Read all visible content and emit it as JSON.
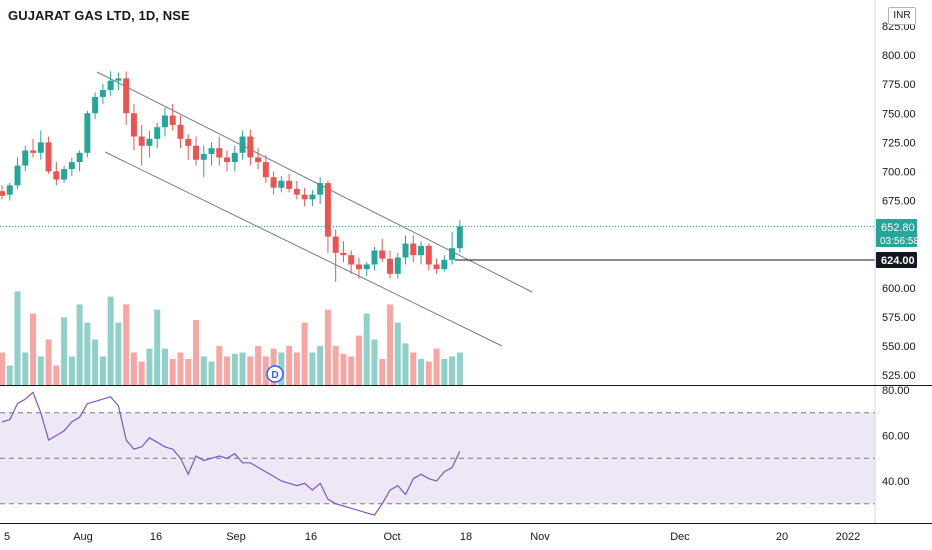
{
  "header": {
    "title": "GUJARAT GAS LTD, 1D, NSE",
    "currency_label": "INR"
  },
  "price_axis": {
    "ticks": [
      "825.00",
      "800.00",
      "775.00",
      "750.00",
      "725.00",
      "700.00",
      "675.00",
      "600.00",
      "575.00",
      "550.00",
      "525.00"
    ],
    "last_price": "652.80",
    "countdown": "03:56:58",
    "level_label": "624.00"
  },
  "rsi_axis": {
    "ticks": [
      "80.00",
      "60.00",
      "40.00"
    ]
  },
  "time_axis": {
    "labels": [
      "5",
      "Aug",
      "16",
      "Sep",
      "16",
      "Oct",
      "18",
      "Nov",
      "Dec",
      "20",
      "2022"
    ]
  },
  "dividend_marker": "D",
  "colors": {
    "up": "#26a69a",
    "down": "#ef5350",
    "up_volume": "#8fd1c8",
    "down_volume": "#f7a6a4",
    "rsi_line": "#7e57c2",
    "rsi_band": "#ede7f6",
    "trendline": "#787b86"
  },
  "chart_data": {
    "type": "candlestick",
    "title": "GUJARAT GAS LTD, 1D, NSE",
    "price_ylim": [
      515,
      835
    ],
    "candles": [
      [
        683,
        688,
        676,
        679
      ],
      [
        680,
        690,
        675,
        688
      ],
      [
        688,
        712,
        685,
        705
      ],
      [
        705,
        722,
        700,
        718
      ],
      [
        718,
        728,
        712,
        716
      ],
      [
        716,
        735,
        710,
        725
      ],
      [
        725,
        730,
        698,
        700
      ],
      [
        700,
        708,
        688,
        693
      ],
      [
        693,
        705,
        690,
        702
      ],
      [
        702,
        712,
        696,
        708
      ],
      [
        708,
        718,
        700,
        716
      ],
      [
        716,
        752,
        712,
        750
      ],
      [
        750,
        768,
        745,
        764
      ],
      [
        764,
        775,
        758,
        770
      ],
      [
        770,
        786,
        765,
        778
      ],
      [
        778,
        785,
        770,
        780
      ],
      [
        780,
        786,
        740,
        750
      ],
      [
        750,
        758,
        718,
        730
      ],
      [
        730,
        740,
        705,
        722
      ],
      [
        722,
        735,
        712,
        728
      ],
      [
        728,
        742,
        720,
        738
      ],
      [
        738,
        755,
        730,
        748
      ],
      [
        748,
        758,
        735,
        740
      ],
      [
        740,
        748,
        720,
        728
      ],
      [
        728,
        732,
        710,
        722
      ],
      [
        722,
        730,
        705,
        710
      ],
      [
        710,
        722,
        695,
        715
      ],
      [
        715,
        725,
        705,
        720
      ],
      [
        720,
        730,
        705,
        712
      ],
      [
        712,
        718,
        700,
        708
      ],
      [
        708,
        722,
        700,
        716
      ],
      [
        716,
        735,
        710,
        730
      ],
      [
        730,
        736,
        705,
        712
      ],
      [
        712,
        720,
        702,
        708
      ],
      [
        708,
        714,
        690,
        695
      ],
      [
        695,
        700,
        680,
        686
      ],
      [
        686,
        696,
        682,
        692
      ],
      [
        692,
        698,
        682,
        685
      ],
      [
        685,
        692,
        676,
        680
      ],
      [
        680,
        686,
        670,
        676
      ],
      [
        676,
        684,
        670,
        680
      ],
      [
        680,
        695,
        672,
        690
      ],
      [
        690,
        692,
        630,
        644
      ],
      [
        644,
        650,
        605,
        630
      ],
      [
        630,
        640,
        622,
        628
      ],
      [
        628,
        632,
        612,
        620
      ],
      [
        620,
        626,
        608,
        616
      ],
      [
        616,
        622,
        610,
        620
      ],
      [
        620,
        635,
        615,
        632
      ],
      [
        632,
        642,
        622,
        625
      ],
      [
        625,
        632,
        608,
        612
      ],
      [
        612,
        630,
        608,
        626
      ],
      [
        626,
        645,
        620,
        638
      ],
      [
        638,
        645,
        622,
        628
      ],
      [
        628,
        640,
        620,
        636
      ],
      [
        636,
        638,
        615,
        620
      ],
      [
        620,
        625,
        612,
        616
      ],
      [
        616,
        628,
        614,
        624
      ],
      [
        624,
        648,
        620,
        634
      ],
      [
        634,
        658,
        630,
        652.8
      ]
    ],
    "volume": [
      0.25,
      0.15,
      0.72,
      0.25,
      0.55,
      0.22,
      0.35,
      0.15,
      0.52,
      0.22,
      0.62,
      0.48,
      0.35,
      0.22,
      0.68,
      0.48,
      0.62,
      0.25,
      0.18,
      0.28,
      0.58,
      0.28,
      0.2,
      0.25,
      0.2,
      0.5,
      0.22,
      0.18,
      0.3,
      0.22,
      0.24,
      0.25,
      0.22,
      0.3,
      0.22,
      0.28,
      0.25,
      0.3,
      0.25,
      0.48,
      0.25,
      0.3,
      0.58,
      0.3,
      0.24,
      0.22,
      0.38,
      0.55,
      0.35,
      0.2,
      0.62,
      0.48,
      0.32,
      0.25,
      0.2,
      0.18,
      0.28,
      0.2,
      0.22,
      0.25
    ],
    "rsi": [
      66,
      67,
      74,
      76,
      79,
      70,
      58,
      60,
      62,
      66,
      68,
      74,
      75,
      76,
      77,
      73,
      58,
      54,
      55,
      59,
      57,
      55,
      54,
      50,
      43,
      51,
      49,
      50,
      51,
      50,
      52,
      48,
      48,
      46,
      44,
      42,
      40,
      39,
      38,
      39,
      36,
      39,
      32,
      30,
      29,
      28,
      27,
      26,
      25,
      30,
      36,
      38,
      34,
      41,
      43,
      41,
      40,
      44,
      46,
      53
    ],
    "rsi_ylim": [
      27,
      83
    ],
    "rsi_band": [
      30,
      70
    ],
    "rsi_mid": 50,
    "horizontal_level": 624.0,
    "last_price": 652.8,
    "trend_channel": {
      "upper": {
        "from": [
          "Jul 30",
          786
        ],
        "to": [
          "Oct 25",
          598
        ]
      },
      "lower": {
        "from": [
          "Aug 3",
          720
        ],
        "to": [
          "Oct 27",
          550
        ]
      }
    }
  }
}
